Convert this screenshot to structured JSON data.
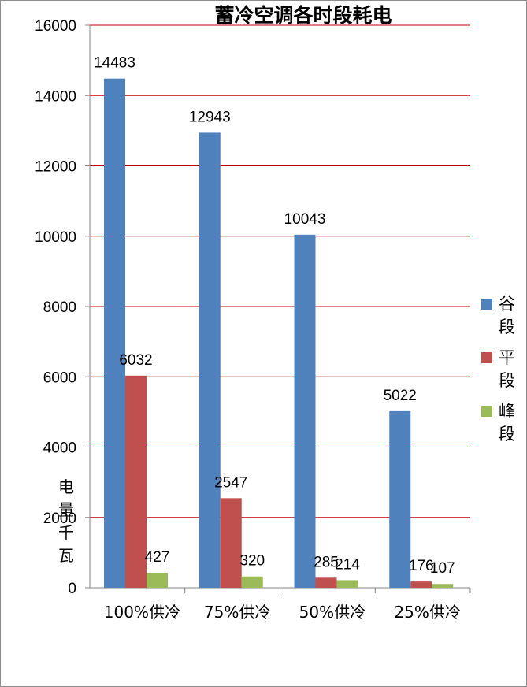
{
  "chart_data": {
    "type": "bar",
    "title": "蓄冷空调各时段耗电",
    "categories": [
      "100%供冷",
      "75%供冷",
      "50%供冷",
      "25%供冷"
    ],
    "series": [
      {
        "name": "谷段",
        "color": "#4F81BD",
        "values": [
          14483,
          12943,
          10043,
          5022
        ]
      },
      {
        "name": "平段",
        "color": "#C0504D",
        "values": [
          6032,
          2547,
          285,
          176
        ]
      },
      {
        "name": "峰段",
        "color": "#9BBB59",
        "values": [
          427,
          320,
          214,
          107
        ]
      }
    ],
    "ylabel": "电量千瓦",
    "ylim": [
      0,
      16000
    ],
    "yticks": [
      0,
      2000,
      4000,
      6000,
      8000,
      10000,
      12000,
      14000,
      16000
    ],
    "grid": true,
    "gridline_color": "#C00000",
    "legend_position": "right",
    "data_labels": true
  }
}
